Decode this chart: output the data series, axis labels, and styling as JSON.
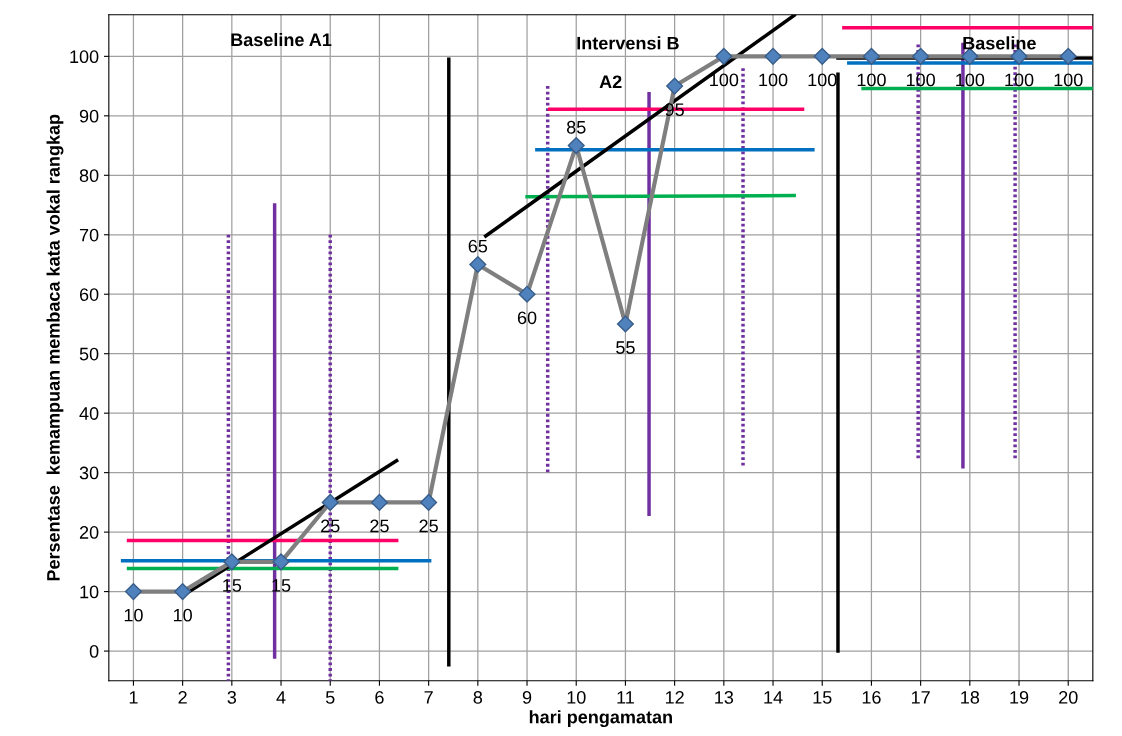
{
  "chart_data": {
    "type": "line",
    "xlabel": "hari pengamatan",
    "ylabel": "Persentase  kemampuan membaca kata vokal rangkap",
    "x": [
      1,
      2,
      3,
      4,
      5,
      6,
      7,
      8,
      9,
      10,
      11,
      12,
      13,
      14,
      15,
      16,
      17,
      18,
      19,
      20
    ],
    "xlim": [
      0.5,
      20.5
    ],
    "xticks": [
      1,
      2,
      3,
      4,
      5,
      6,
      7,
      8,
      9,
      10,
      11,
      12,
      13,
      14,
      15,
      16,
      17,
      18,
      19,
      20
    ],
    "ylim": [
      -5,
      107
    ],
    "yticks": [
      0,
      10,
      20,
      30,
      40,
      50,
      60,
      70,
      80,
      90,
      100
    ],
    "grid": true,
    "legend": false,
    "marker": "diamond",
    "series": [
      {
        "color": "#7f7f7f",
        "data_labels": true,
        "values": [
          10,
          10,
          15,
          15,
          25,
          25,
          25,
          65,
          60,
          85,
          55,
          95,
          100,
          100,
          100,
          100,
          100,
          100,
          100,
          100
        ]
      },
      {
        "type": "line",
        "color": "#000000",
        "marker": "none",
        "x": [
          7.41,
          7.41
        ],
        "values": [
          99.5,
          -2.3
        ]
      },
      {
        "type": "line",
        "color": "#000000",
        "marker": "none",
        "x": [
          15.32,
          15.32
        ],
        "values": [
          97,
          0
        ]
      },
      {
        "type": "line",
        "color": "#000000",
        "marker": "none",
        "x": [
          15.32,
          20.47
        ],
        "values": [
          99.7,
          99.7
        ]
      },
      {
        "type": "line",
        "color": "#000000",
        "marker": "none",
        "x": [
          2.06,
          6.35
        ],
        "values": [
          9.6,
          32.0
        ]
      },
      {
        "type": "line",
        "color": "#000000",
        "marker": "none",
        "x": [
          8.16,
          14.43
        ],
        "values": [
          69.8,
          106.9
        ]
      },
      {
        "type": "line",
        "color": "#7030a0",
        "marker": "none",
        "x": [
          3.87,
          3.87
        ],
        "values": [
          75,
          -1
        ]
      },
      {
        "type": "line",
        "color": "#7030a0",
        "marker": "none",
        "x": [
          11.48,
          11.48
        ],
        "values": [
          93.7,
          23
        ]
      },
      {
        "type": "line",
        "color": "#7030a0",
        "marker": "none",
        "x": [
          17.86,
          17.86
        ],
        "values": [
          102,
          31
        ]
      },
      {
        "type": "line",
        "color": "#7030a0",
        "marker": "none",
        "line_style": "dotted",
        "x": [
          2.93,
          2.93
        ],
        "values": [
          70,
          -5
        ]
      },
      {
        "type": "line",
        "color": "#7030a0",
        "marker": "none",
        "line_style": "dotted",
        "x": [
          5.0,
          5.0
        ],
        "values": [
          70,
          -5
        ]
      },
      {
        "type": "line",
        "color": "#7030a0",
        "marker": "none",
        "line_style": "dotted",
        "x": [
          9.42,
          9.42
        ],
        "values": [
          95,
          30
        ]
      },
      {
        "type": "line",
        "color": "#7030a0",
        "marker": "none",
        "line_style": "dotted",
        "x": [
          13.39,
          13.39
        ],
        "values": [
          98,
          31
        ]
      },
      {
        "type": "line",
        "color": "#7030a0",
        "marker": "none",
        "line_style": "dotted",
        "x": [
          16.95,
          16.95
        ],
        "values": [
          102,
          32
        ]
      },
      {
        "type": "line",
        "color": "#7030a0",
        "marker": "none",
        "line_style": "dotted",
        "x": [
          18.92,
          18.92
        ],
        "values": [
          102,
          32
        ]
      },
      {
        "type": "line",
        "color": "#ff0066",
        "marker": "none",
        "x": [
          0.9,
          6.35
        ],
        "values": [
          18.6,
          18.6
        ]
      },
      {
        "type": "line",
        "color": "#ff0066",
        "marker": "none",
        "x": [
          9.46,
          14.6
        ],
        "values": [
          91.1,
          91.1
        ]
      },
      {
        "type": "line",
        "color": "#ff0066",
        "marker": "none",
        "x": [
          15.44,
          20.5
        ],
        "values": [
          104.8,
          104.8
        ]
      },
      {
        "type": "line",
        "color": "#0070c0",
        "marker": "none",
        "x": [
          0.78,
          7.02
        ],
        "values": [
          15.2,
          15.2
        ]
      },
      {
        "type": "line",
        "color": "#0070c0",
        "marker": "none",
        "x": [
          9.2,
          14.81
        ],
        "values": [
          84.3,
          84.3
        ]
      },
      {
        "type": "line",
        "color": "#0070c0",
        "marker": "none",
        "x": [
          15.54,
          20.5
        ],
        "values": [
          98.9,
          98.9
        ]
      },
      {
        "type": "line",
        "color": "#00b050",
        "marker": "none",
        "x": [
          0.9,
          6.35
        ],
        "values": [
          13.9,
          13.9
        ]
      },
      {
        "type": "line",
        "color": "#00b050",
        "marker": "none",
        "x": [
          9.0,
          14.43
        ],
        "values": [
          76.4,
          76.6
        ]
      },
      {
        "type": "line",
        "color": "#00b050",
        "marker": "none",
        "x": [
          15.83,
          20.5
        ],
        "values": [
          94.6,
          94.6
        ]
      }
    ],
    "annotations": [
      "Baseline A1",
      "Intervensi B",
      "A2",
      "Baseline"
    ]
  }
}
